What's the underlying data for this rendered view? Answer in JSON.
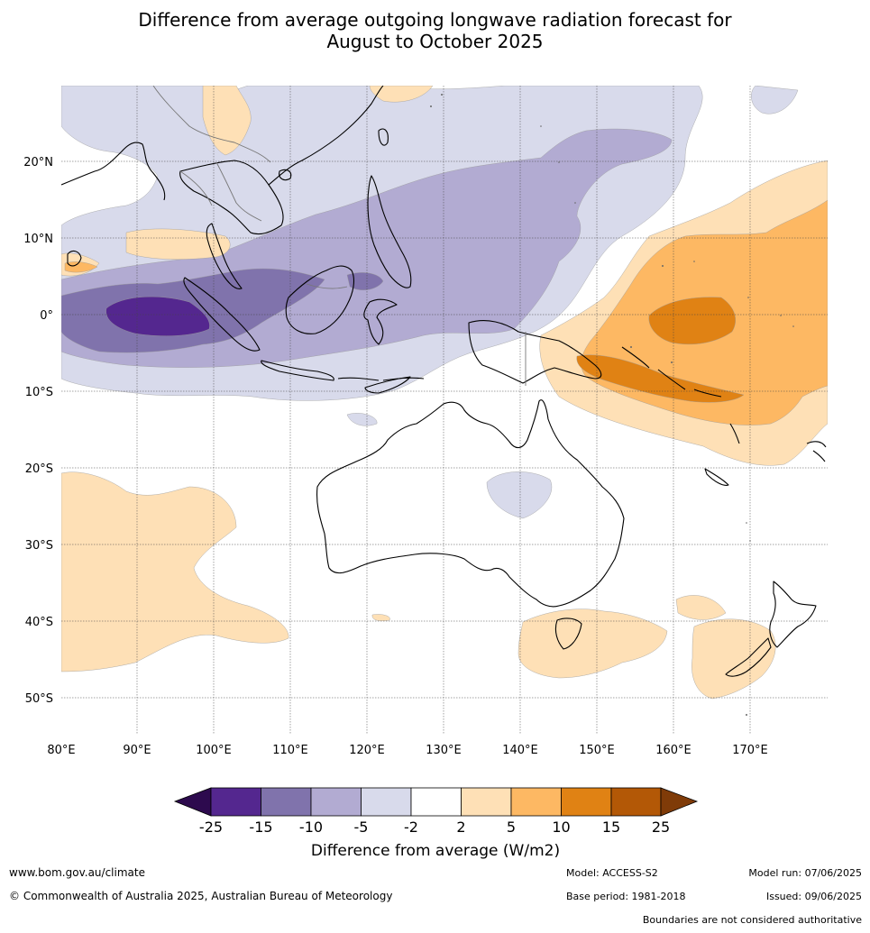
{
  "title": {
    "line1": "Difference from average outgoing longwave radiation forecast for",
    "line2": "August to October 2025"
  },
  "axes": {
    "lon_labels": [
      "80°E",
      "90°E",
      "100°E",
      "110°E",
      "120°E",
      "130°E",
      "140°E",
      "150°E",
      "160°E",
      "170°E"
    ],
    "lat_labels": [
      "20°N",
      "10°N",
      "0°",
      "10°S",
      "20°S",
      "30°S",
      "40°S",
      "50°S"
    ]
  },
  "colorbar": {
    "title": "Difference from average (W/m2)",
    "tick_labels": [
      "-25",
      "-15",
      "-10",
      "-5",
      "-2",
      "2",
      "5",
      "10",
      "15",
      "25"
    ],
    "colors": {
      "below_min": "#2d0a4e",
      "c1": "#54278f",
      "c2": "#8073ac",
      "c3": "#b2abd2",
      "c4": "#d8daeb",
      "neutral": "#ffffff",
      "c5": "#fee0b6",
      "c6": "#fdb863",
      "c7": "#e08214",
      "c8": "#b35806",
      "above_max": "#7f3b08"
    }
  },
  "footer": {
    "website": "www.bom.gov.au/climate",
    "copyright": "© Commonwealth of Australia 2025, Australian Bureau of Meteorology",
    "model": "Model: ACCESS-S2",
    "base_period": "Base period: 1981-2018",
    "model_run": "Model run: 07/06/2025",
    "issued": "Issued: 09/06/2025",
    "disclaimer": "Boundaries are not considered authoritative"
  }
}
